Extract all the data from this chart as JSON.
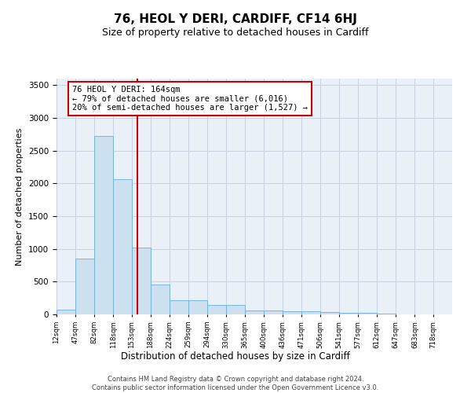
{
  "title": "76, HEOL Y DERI, CARDIFF, CF14 6HJ",
  "subtitle": "Size of property relative to detached houses in Cardiff",
  "xlabel": "Distribution of detached houses by size in Cardiff",
  "ylabel": "Number of detached properties",
  "bar_color": "#cce0f0",
  "bar_edge_color": "#6baed6",
  "grid_color": "#c8d4e0",
  "background_color": "#eaf0f8",
  "vline_color": "#cc0000",
  "vline_x": 164,
  "annotation_text": "76 HEOL Y DERI: 164sqm\n← 79% of detached houses are smaller (6,016)\n20% of semi-detached houses are larger (1,527) →",
  "footer_text": "Contains HM Land Registry data © Crown copyright and database right 2024.\nContains public sector information licensed under the Open Government Licence v3.0.",
  "bin_labels": [
    "12sqm",
    "47sqm",
    "82sqm",
    "118sqm",
    "153sqm",
    "188sqm",
    "224sqm",
    "259sqm",
    "294sqm",
    "330sqm",
    "365sqm",
    "400sqm",
    "436sqm",
    "471sqm",
    "506sqm",
    "541sqm",
    "577sqm",
    "612sqm",
    "647sqm",
    "683sqm",
    "718sqm"
  ],
  "bin_edges": [
    12,
    47,
    82,
    118,
    153,
    188,
    224,
    259,
    294,
    330,
    365,
    400,
    436,
    471,
    506,
    541,
    577,
    612,
    647,
    683,
    718
  ],
  "bar_heights": [
    70,
    850,
    2720,
    2060,
    1020,
    460,
    220,
    220,
    150,
    150,
    60,
    60,
    50,
    50,
    35,
    30,
    25,
    10,
    5,
    5
  ],
  "ylim": [
    0,
    3600
  ],
  "yticks": [
    0,
    500,
    1000,
    1500,
    2000,
    2500,
    3000,
    3500
  ]
}
